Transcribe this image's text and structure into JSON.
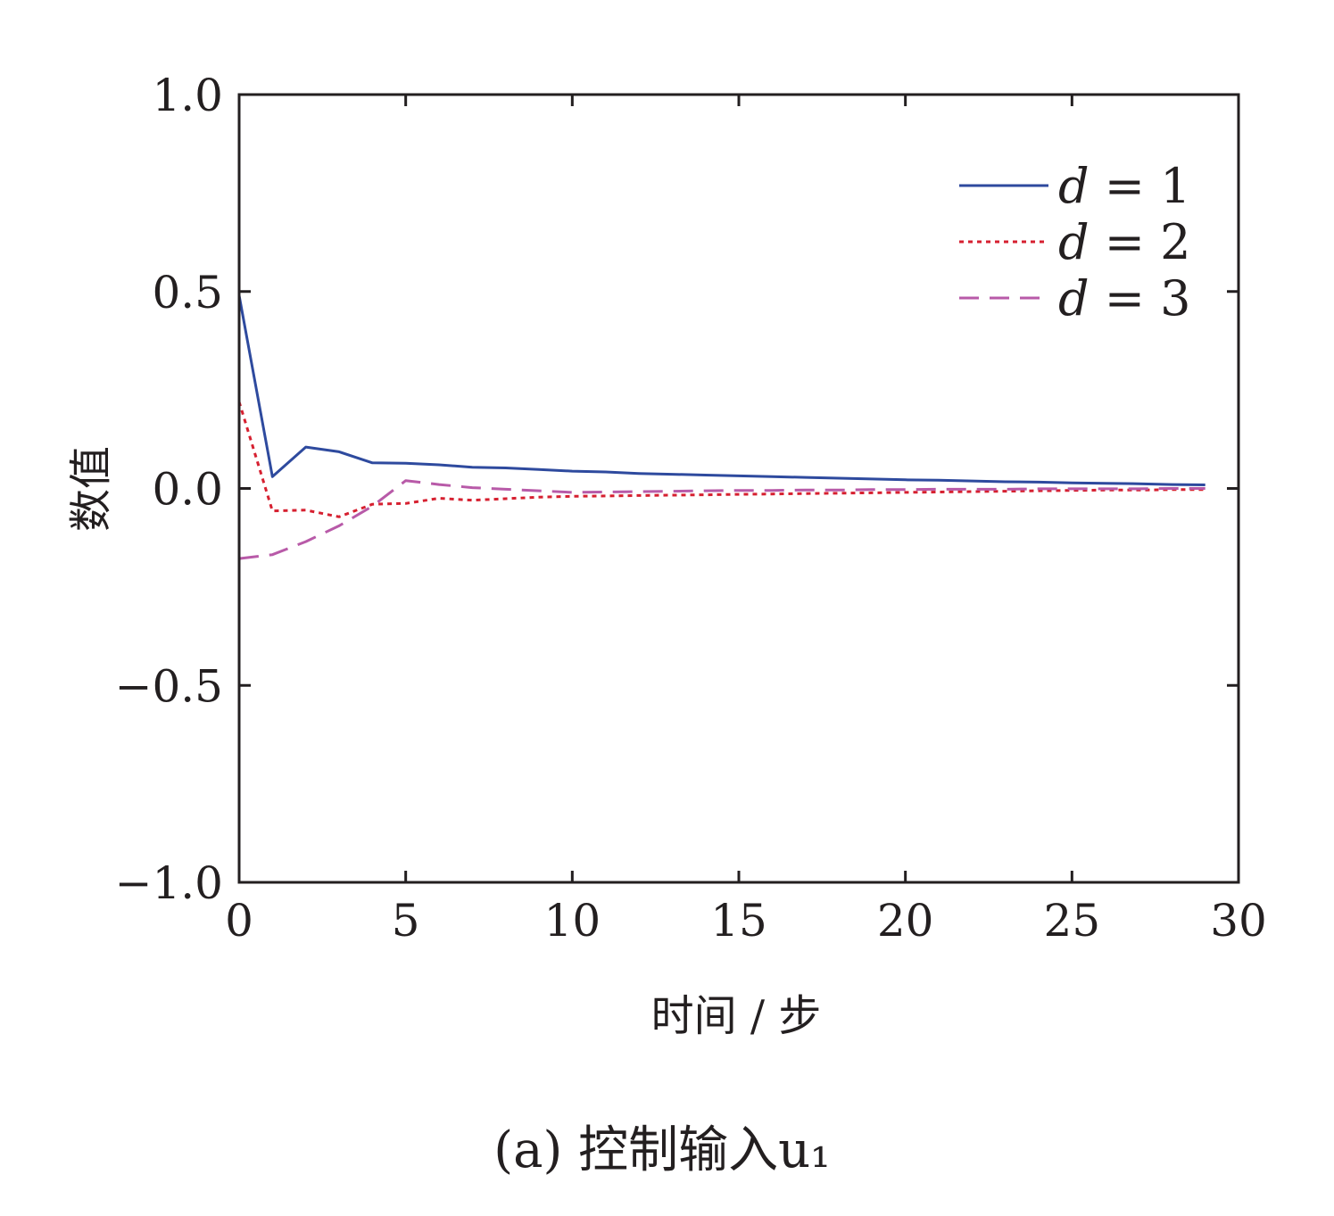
{
  "chart_data": {
    "type": "line",
    "xlabel": "时间 / 步",
    "ylabel": "数值",
    "caption": "(a) 控制输入u₁",
    "xlim": [
      0,
      30
    ],
    "ylim": [
      -1.0,
      1.0
    ],
    "xticks": [
      "0",
      "5",
      "10",
      "15",
      "20",
      "25",
      "30"
    ],
    "yticks": [
      "1.0",
      "0.5",
      "0.0",
      "−0.5",
      "−1.0"
    ],
    "grid": false,
    "legend_position": "top-right",
    "series": [
      {
        "name": "d = 1",
        "legend_var": "d",
        "legend_rest": " = 1",
        "color": "#2e4a9e",
        "style": "solid",
        "x": [
          0,
          1,
          2,
          3,
          4,
          5,
          6,
          7,
          8,
          9,
          10,
          11,
          12,
          13,
          14,
          15,
          16,
          17,
          18,
          19,
          20,
          21,
          22,
          23,
          24,
          25,
          26,
          27,
          28,
          29
        ],
        "y": [
          0.49,
          0.03,
          0.105,
          0.093,
          0.065,
          0.064,
          0.06,
          0.054,
          0.052,
          0.048,
          0.044,
          0.042,
          0.038,
          0.036,
          0.034,
          0.032,
          0.03,
          0.028,
          0.026,
          0.024,
          0.022,
          0.021,
          0.019,
          0.017,
          0.016,
          0.014,
          0.013,
          0.012,
          0.01,
          0.009
        ]
      },
      {
        "name": "d = 2",
        "legend_var": "d",
        "legend_rest": " = 2",
        "color": "#d62030",
        "style": "dotted",
        "x": [
          0,
          1,
          2,
          3,
          4,
          5,
          6,
          7,
          8,
          9,
          10,
          11,
          12,
          13,
          14,
          15,
          16,
          17,
          18,
          19,
          20,
          21,
          22,
          23,
          24,
          25,
          26,
          27,
          28,
          29
        ],
        "y": [
          0.22,
          -0.057,
          -0.055,
          -0.072,
          -0.04,
          -0.038,
          -0.025,
          -0.03,
          -0.026,
          -0.022,
          -0.02,
          -0.019,
          -0.018,
          -0.017,
          -0.016,
          -0.015,
          -0.014,
          -0.013,
          -0.012,
          -0.011,
          -0.01,
          -0.009,
          -0.008,
          -0.007,
          -0.006,
          -0.005,
          -0.004,
          -0.004,
          -0.003,
          -0.003
        ]
      },
      {
        "name": "d = 3",
        "legend_var": "d",
        "legend_rest": " = 3",
        "color": "#b85aa8",
        "style": "dashed",
        "x": [
          0,
          1,
          2,
          3,
          4,
          5,
          6,
          7,
          8,
          9,
          10,
          11,
          12,
          13,
          14,
          15,
          16,
          17,
          18,
          19,
          20,
          21,
          22,
          23,
          24,
          25,
          26,
          27,
          28,
          29
        ],
        "y": [
          -0.178,
          -0.168,
          -0.135,
          -0.095,
          -0.045,
          0.02,
          0.01,
          0.002,
          -0.002,
          -0.006,
          -0.01,
          -0.009,
          -0.008,
          -0.007,
          -0.006,
          -0.005,
          -0.005,
          -0.004,
          -0.004,
          -0.003,
          -0.003,
          -0.002,
          -0.002,
          -0.002,
          -0.001,
          -0.001,
          -0.001,
          -0.001,
          0.0,
          0.0
        ]
      }
    ]
  }
}
